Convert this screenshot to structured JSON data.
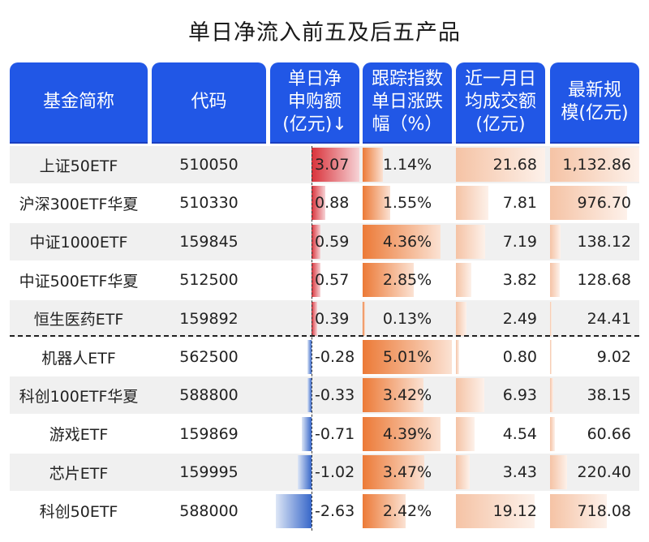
{
  "title": "单日净流入前五及后五产品",
  "headers": [
    "基金简称",
    "代码",
    "单日净\n申购额\n(亿元)↓",
    "跟踪指数\n单日涨跌\n幅（%）",
    "近一月日\n均成交额\n(亿元)",
    "最新规\n模(亿元)"
  ],
  "colors": {
    "header_bg": "#2157e6",
    "positive_bar": "#d9323a",
    "negative_bar": "#3767c9",
    "change_bar": "#ec7a37",
    "volume_bar": "#f5c3a5",
    "alt_row": "#f0f0f0"
  },
  "rows": [
    {
      "name": "上证50ETF",
      "code": "510050",
      "flow": "3.07",
      "chg": "1.14%",
      "vol": "21.68",
      "aum": "1,132.86"
    },
    {
      "name": "沪深300ETF华夏",
      "code": "510330",
      "flow": "0.88",
      "chg": "1.55%",
      "vol": "7.81",
      "aum": "976.70"
    },
    {
      "name": "中证1000ETF",
      "code": "159845",
      "flow": "0.59",
      "chg": "4.36%",
      "vol": "7.19",
      "aum": "138.12"
    },
    {
      "name": "中证500ETF华夏",
      "code": "512500",
      "flow": "0.57",
      "chg": "2.85%",
      "vol": "3.82",
      "aum": "128.68"
    },
    {
      "name": "恒生医药ETF",
      "code": "159892",
      "flow": "0.39",
      "chg": "0.13%",
      "vol": "2.49",
      "aum": "24.41"
    },
    {
      "name": "机器人ETF",
      "code": "562500",
      "flow": "-0.28",
      "chg": "5.01%",
      "vol": "0.80",
      "aum": "9.02"
    },
    {
      "name": "科创100ETF华夏",
      "code": "588800",
      "flow": "-0.33",
      "chg": "3.42%",
      "vol": "6.93",
      "aum": "38.15"
    },
    {
      "name": "游戏ETF",
      "code": "159869",
      "flow": "-0.71",
      "chg": "4.39%",
      "vol": "4.54",
      "aum": "60.66"
    },
    {
      "name": "芯片ETF",
      "code": "159995",
      "flow": "-1.02",
      "chg": "3.47%",
      "vol": "3.43",
      "aum": "220.40"
    },
    {
      "name": "科创50ETF",
      "code": "588000",
      "flow": "-2.63",
      "chg": "2.42%",
      "vol": "19.12",
      "aum": "718.08"
    }
  ],
  "chart_data": {
    "type": "table",
    "title": "单日净流入前五及后五产品",
    "columns": [
      "基金简称",
      "代码",
      "单日净申购额(亿元)",
      "跟踪指数单日涨跌幅(%)",
      "近一月日均成交额(亿元)",
      "最新规模(亿元)"
    ],
    "sort": {
      "column": "单日净申购额(亿元)",
      "order": "desc"
    },
    "groups": {
      "top5_inflow": [
        0,
        1,
        2,
        3,
        4
      ],
      "bottom5_outflow": [
        5,
        6,
        7,
        8,
        9
      ]
    },
    "rows": [
      [
        "上证50ETF",
        "510050",
        3.07,
        1.14,
        21.68,
        1132.86
      ],
      [
        "沪深300ETF华夏",
        "510330",
        0.88,
        1.55,
        7.81,
        976.7
      ],
      [
        "中证1000ETF",
        "159845",
        0.59,
        4.36,
        7.19,
        138.12
      ],
      [
        "中证500ETF华夏",
        "512500",
        0.57,
        2.85,
        3.82,
        128.68
      ],
      [
        "恒生医药ETF",
        "159892",
        0.39,
        0.13,
        2.49,
        24.41
      ],
      [
        "机器人ETF",
        "562500",
        -0.28,
        5.01,
        0.8,
        9.02
      ],
      [
        "科创100ETF华夏",
        "588800",
        -0.33,
        3.42,
        6.93,
        38.15
      ],
      [
        "游戏ETF",
        "159869",
        -0.71,
        4.39,
        4.54,
        60.66
      ],
      [
        "芯片ETF",
        "159995",
        -1.02,
        3.47,
        3.43,
        220.4
      ],
      [
        "科创50ETF",
        "588000",
        -2.63,
        2.42,
        19.12,
        718.08
      ]
    ],
    "data_bars": {
      "net_flow": {
        "positive_color": "#d9323a",
        "negative_color": "#3767c9",
        "axis": "midpoint"
      },
      "change_pct": {
        "color": "#ec7a37"
      },
      "avg_volume": {
        "color": "#f5c3a5"
      },
      "aum": {
        "color": "#f5c3a5"
      }
    }
  }
}
